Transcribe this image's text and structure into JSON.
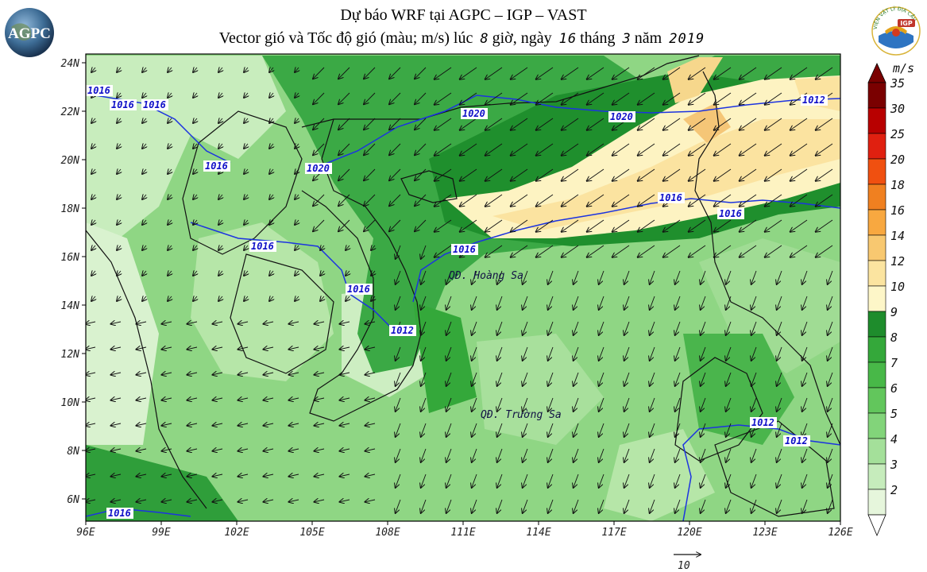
{
  "header": {
    "title_line1": "Dự báo WRF tại AGPC – IGP – VAST",
    "title_prefix": "Vector gió và Tốc độ gió (màu; m/s) lúc",
    "hour": "8",
    "hour_word": "giờ, ngày",
    "day": "16",
    "month_word": "tháng",
    "month": "3",
    "year_word": "năm",
    "year": "2019"
  },
  "logos": {
    "left_text": "AGPC",
    "right_ring_text": "VIỆN VẬT LÝ ĐỊA CẦU",
    "right_badge": "IGP"
  },
  "map": {
    "lat_labels": [
      "24N",
      "22N",
      "20N",
      "18N",
      "16N",
      "14N",
      "12N",
      "10N",
      "8N",
      "6N"
    ],
    "lon_labels": [
      "96E",
      "99E",
      "102E",
      "105E",
      "108E",
      "111E",
      "114E",
      "117E",
      "120E",
      "123E",
      "126E"
    ],
    "place_labels": [
      "QĐ. Hoàng Sa",
      "QĐ. Trường Sa"
    ],
    "isobar_labels": [
      "1016",
      "1016",
      "1016",
      "1016",
      "1020",
      "1020",
      "1020",
      "1016",
      "1016",
      "1016",
      "1016",
      "1012",
      "1016",
      "1016",
      "1012",
      "1012",
      "1012"
    ],
    "reference_vector_label": "10"
  },
  "colorbar": {
    "unit": "m/s",
    "labels": [
      "35",
      "30",
      "25",
      "20",
      "18",
      "16",
      "14",
      "12",
      "10",
      "9",
      "8",
      "7",
      "6",
      "5",
      "4",
      "3",
      "2"
    ],
    "colors": [
      "#7a0000",
      "#b80000",
      "#e02010",
      "#f05010",
      "#f08020",
      "#f8a840",
      "#f8c870",
      "#fbe4a0",
      "#fdf6c8",
      "#1e8c2c",
      "#34a83a",
      "#48b848",
      "#62c65c",
      "#82d47a",
      "#a4e09a",
      "#c6ecbc",
      "#e6f6dc"
    ]
  }
}
